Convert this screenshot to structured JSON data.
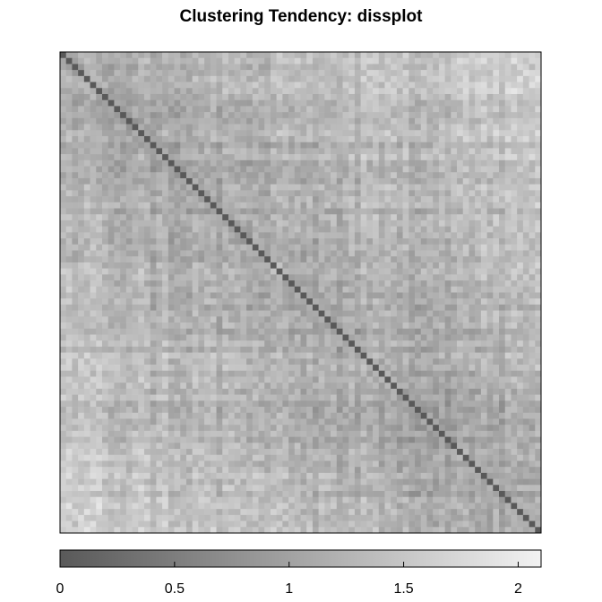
{
  "chart_data": {
    "type": "heatmap",
    "title": "Clustering Tendency: dissplot",
    "xlabel": "",
    "ylabel": "",
    "n_objects": 80,
    "matrix_encoding": "symmetric pairwise dissimilarity matrix, zero diagonal, objects ordered by seriation",
    "value_range": [
      0,
      2.1
    ],
    "colorbar": {
      "position": "bottom",
      "range": [
        0,
        2.1
      ],
      "ticks": [
        0,
        0.5,
        1,
        1.5,
        2
      ],
      "tick_labels": [
        "0",
        "0.5",
        "1",
        "1.5",
        "2"
      ],
      "colors": {
        "low": "#595959",
        "high": "#f2f2f2"
      }
    },
    "dissimilarity_summary": {
      "diagonal": 0,
      "typical_range": [
        0.9,
        1.5
      ],
      "max": 2.05
    },
    "grid": false,
    "legend": "none"
  }
}
